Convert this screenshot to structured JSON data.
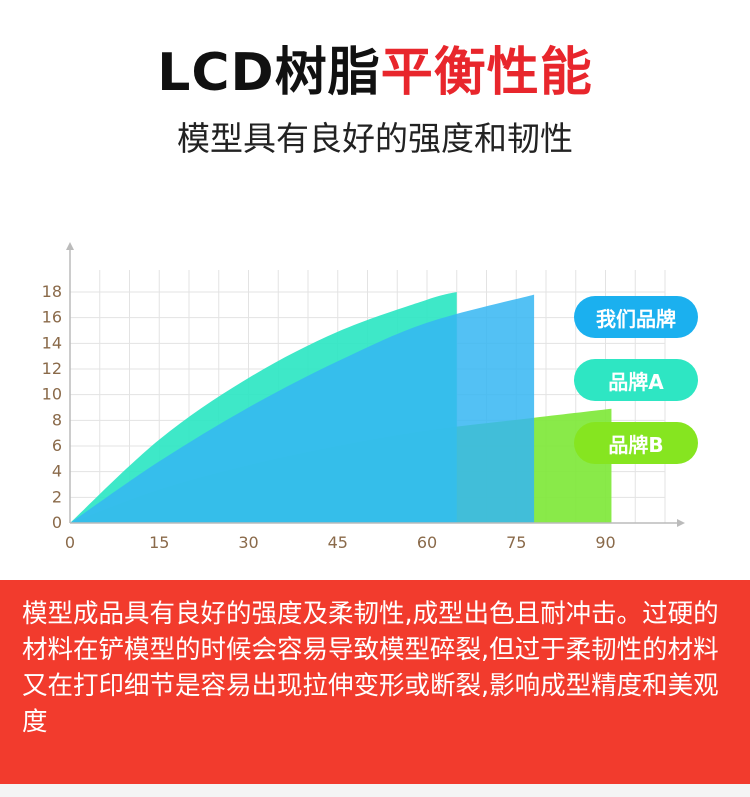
{
  "header": {
    "title_part1": "LCD树脂",
    "title_part2": "平衡性能",
    "subtitle": "模型具有良好的强度和韧性"
  },
  "colors": {
    "title_dark": "#111111",
    "title_accent": "#e8262c",
    "note_bg": "#f23b2d",
    "grid": "#e3e3e3",
    "axis": "#bbbbbb",
    "tick_text": "#8a6a4a"
  },
  "chart_data": {
    "type": "area",
    "xlim": [
      0,
      100
    ],
    "ylim": [
      0,
      19
    ],
    "x_ticks": [
      0,
      15,
      30,
      45,
      60,
      75,
      90
    ],
    "y_ticks": [
      0,
      2,
      4,
      6,
      8,
      10,
      12,
      14,
      16,
      18
    ],
    "grid": true,
    "legend_position": "right",
    "series": [
      {
        "name": "我们品牌",
        "color": "#35b6f2",
        "x": [
          0,
          15,
          30,
          45,
          60,
          78
        ],
        "values": [
          0,
          4.8,
          9.0,
          12.6,
          15.6,
          17.8
        ]
      },
      {
        "name": "品牌A",
        "color": "#2ee6c3",
        "x": [
          0,
          15,
          30,
          45,
          60,
          65
        ],
        "values": [
          0,
          6.5,
          11.3,
          14.9,
          17.4,
          18.0
        ]
      },
      {
        "name": "品牌B",
        "color": "#7fe83a",
        "x": [
          0,
          15,
          30,
          45,
          60,
          78,
          91
        ],
        "values": [
          0,
          2.6,
          4.5,
          6.0,
          7.2,
          8.2,
          8.9
        ]
      }
    ]
  },
  "note": {
    "text": "模型成品具有良好的强度及柔韧性,成型出色且耐冲击。过硬的材料在铲模型的时候会容易导致模型碎裂,但过于柔韧性的材料又在打印细节是容易出现拉伸变形或断裂,影响成型精度和美观度"
  }
}
